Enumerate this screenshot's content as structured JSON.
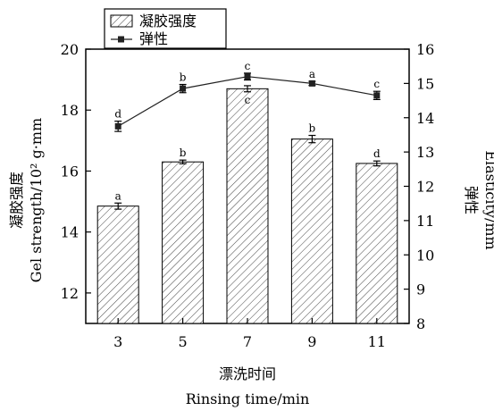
{
  "chart_data": {
    "type": "bar+line",
    "categories": [
      "3",
      "5",
      "7",
      "9",
      "11"
    ],
    "xlabel_cn": "漂洗时间",
    "xlabel_en": "Rinsing time/min",
    "ylabel_left_cn": "凝胶强度",
    "ylabel_left_en": "Gel strength/10² g·mm",
    "ylabel_right_cn": "弹性",
    "ylabel_right_en": "Elasticity/mm",
    "ylim_left": [
      11,
      20
    ],
    "ylim_right": [
      8,
      16
    ],
    "left_ticks": [
      "12",
      "14",
      "16",
      "18",
      "20"
    ],
    "right_ticks": [
      "8",
      "9",
      "10",
      "11",
      "12",
      "13",
      "14",
      "15",
      "16"
    ],
    "legend": {
      "placement": "top-left",
      "bar_label": "凝胶强度",
      "line_label": "弹性"
    },
    "series": [
      {
        "name": "凝胶强度",
        "type": "bar",
        "axis": "left",
        "values": [
          14.85,
          16.3,
          18.7,
          17.05,
          16.25
        ],
        "errors": [
          0.1,
          0.06,
          0.1,
          0.12,
          0.08
        ],
        "labels": [
          "a",
          "b",
          "c",
          "b",
          "d"
        ]
      },
      {
        "name": "弹性",
        "type": "line",
        "axis": "right",
        "values": [
          13.75,
          14.85,
          15.2,
          15.0,
          14.65
        ],
        "errors": [
          0.15,
          0.12,
          0.1,
          0.06,
          0.12
        ],
        "labels": [
          "d",
          "b",
          "c",
          "a",
          "c"
        ]
      }
    ],
    "colors": {
      "bar_hatch": "#444444",
      "line": "#222222"
    }
  }
}
